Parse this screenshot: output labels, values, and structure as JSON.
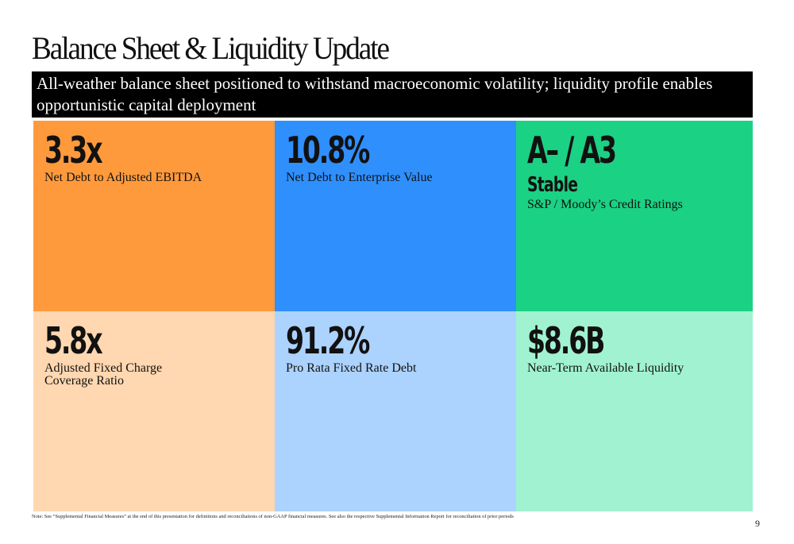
{
  "title": "Balance Sheet & Liquidity Update",
  "banner": "All-weather balance sheet positioned to withstand macroeconomic volatility; liquidity profile enables opportunistic capital deployment",
  "tiles": [
    {
      "metric": "3.3x",
      "label": "Net Debt to Adjusted EBITDA",
      "color": "#ff9a3c"
    },
    {
      "metric": "10.8%",
      "label": "Net Debt to Enterprise Value",
      "color": "#2f8ffd"
    },
    {
      "metric": "A– / A3",
      "outlook": "Stable",
      "label": "S&P / Moody’s Credit Ratings",
      "color": "#1bd184"
    },
    {
      "metric": "5.8x",
      "label": "Adjusted Fixed Charge Coverage Ratio",
      "color": "#ffd7b0"
    },
    {
      "metric": "91.2%",
      "label": "Pro Rata Fixed Rate Debt",
      "color": "#acd2fe"
    },
    {
      "metric": "$8.6B",
      "label": "Near-Term Available Liquidity",
      "color": "#a1f2d0"
    }
  ],
  "footnote": "Note: See “Supplemental Financial Measures” at the end of this presentation for definitions and reconciliations of non-GAAP financial measures. See also the respective Supplemental Information Report for reconciliation of prior periods",
  "page_number": "9"
}
